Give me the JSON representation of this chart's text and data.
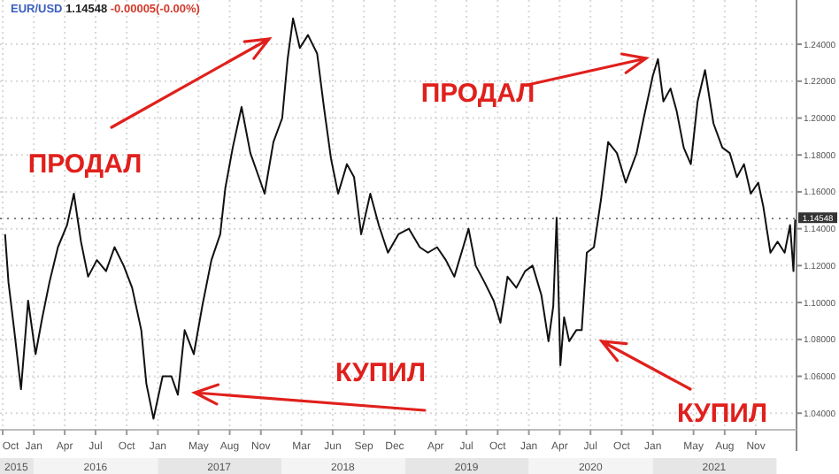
{
  "chart_data": {
    "type": "line",
    "title": "EUR/USD 1.14548 -0.00005(-0.00%)",
    "grid": true,
    "xlim": [
      "2015-09-23",
      "2022-03-01"
    ],
    "ylim": [
      1.031,
      1.264
    ],
    "yticks": [
      {
        "value": 1.04,
        "label": "1.04000"
      },
      {
        "value": 1.06,
        "label": "1.06000"
      },
      {
        "value": 1.08,
        "label": "1.08000"
      },
      {
        "value": 1.1,
        "label": "1.10000"
      },
      {
        "value": 1.12,
        "label": "1.12000"
      },
      {
        "value": 1.14,
        "label": "1.14000"
      },
      {
        "value": 1.16,
        "label": "1.16000"
      },
      {
        "value": 1.18,
        "label": "1.18000"
      },
      {
        "value": 1.2,
        "label": "1.20000"
      },
      {
        "value": 1.22,
        "label": "1.22000"
      },
      {
        "value": 1.24,
        "label": "1.24000"
      }
    ],
    "xticks": [
      {
        "value": "2015-10-01",
        "label": "Oct"
      },
      {
        "value": "2016-01-01",
        "label": "Jan"
      },
      {
        "value": "2016-04-01",
        "label": "Apr"
      },
      {
        "value": "2016-07-01",
        "label": "Jul"
      },
      {
        "value": "2016-10-01",
        "label": "Oct"
      },
      {
        "value": "2017-01-01",
        "label": "Jan"
      },
      {
        "value": "2017-05-01",
        "label": "May"
      },
      {
        "value": "2017-08-01",
        "label": "Aug"
      },
      {
        "value": "2017-11-01",
        "label": "Nov"
      },
      {
        "value": "2018-03-01",
        "label": "Mar"
      },
      {
        "value": "2018-06-01",
        "label": "Jun"
      },
      {
        "value": "2018-09-01",
        "label": "Sep"
      },
      {
        "value": "2018-12-01",
        "label": "Dec"
      },
      {
        "value": "2019-04-01",
        "label": "Apr"
      },
      {
        "value": "2019-07-01",
        "label": "Jul"
      },
      {
        "value": "2019-10-01",
        "label": "Oct"
      },
      {
        "value": "2020-01-01",
        "label": "Jan"
      },
      {
        "value": "2020-04-01",
        "label": "Apr"
      },
      {
        "value": "2020-07-01",
        "label": "Jul"
      },
      {
        "value": "2020-10-01",
        "label": "Oct"
      },
      {
        "value": "2021-01-01",
        "label": "Jan"
      },
      {
        "value": "2021-05-01",
        "label": "May"
      },
      {
        "value": "2021-08-01",
        "label": "Aug"
      },
      {
        "value": "2021-11-01",
        "label": "Nov"
      }
    ],
    "ref_lines": [
      {
        "axis": "y",
        "value": 1.14548,
        "label": "1.14548",
        "color": "#333333"
      }
    ],
    "annotations": [
      "ПРОДАЛ",
      "ПРОДАЛ",
      "КУПИЛ",
      "КУПИЛ"
    ],
    "x2lim": [
      "2015-09-23",
      "2022-03-01"
    ],
    "x2ticks": [
      {
        "value": "2015-11-10",
        "label": "2015"
      },
      {
        "value": "2016-07-01",
        "label": "2016"
      },
      {
        "value": "2017-07-01",
        "label": "2017"
      },
      {
        "value": "2018-07-01",
        "label": "2018"
      },
      {
        "value": "2019-07-01",
        "label": "2019"
      },
      {
        "value": "2020-07-01",
        "label": "2020"
      },
      {
        "value": "2021-07-01",
        "label": "2021"
      }
    ],
    "series": [
      {
        "color": "#111111",
        "x": [
          "2015-10-08",
          "2015-10-18",
          "2015-11-04",
          "2015-11-24",
          "2015-12-15",
          "2016-01-06",
          "2016-01-26",
          "2016-02-16",
          "2016-03-12",
          "2016-04-08",
          "2016-04-28",
          "2016-05-19",
          "2016-06-09",
          "2016-07-05",
          "2016-08-01",
          "2016-08-26",
          "2016-09-22",
          "2016-10-17",
          "2016-11-13",
          "2016-11-28",
          "2016-12-19",
          "2017-01-15",
          "2017-02-10",
          "2017-03-01",
          "2017-03-21",
          "2017-04-17",
          "2017-05-12",
          "2017-06-08",
          "2017-07-04",
          "2017-07-19",
          "2017-08-10",
          "2017-09-05",
          "2017-10-01",
          "2017-10-26",
          "2017-11-12",
          "2017-12-08",
          "2018-01-03",
          "2018-01-19",
          "2018-02-04",
          "2018-02-24",
          "2018-03-20",
          "2018-04-16",
          "2018-05-06",
          "2018-05-27",
          "2018-06-17",
          "2018-07-13",
          "2018-08-03",
          "2018-08-24",
          "2018-09-20",
          "2018-10-15",
          "2018-11-11",
          "2018-12-12",
          "2019-01-12",
          "2019-02-13",
          "2019-03-09",
          "2019-04-05",
          "2019-05-01",
          "2019-05-26",
          "2019-06-21",
          "2019-07-07",
          "2019-07-28",
          "2019-08-23",
          "2019-09-19",
          "2019-10-09",
          "2019-10-30",
          "2019-11-25",
          "2019-12-21",
          "2020-01-12",
          "2020-02-07",
          "2020-02-28",
          "2020-03-13",
          "2020-03-23",
          "2020-04-03",
          "2020-04-14",
          "2020-04-29",
          "2020-05-20",
          "2020-06-05",
          "2020-06-20",
          "2020-07-11",
          "2020-08-01",
          "2020-08-22",
          "2020-09-17",
          "2020-10-13",
          "2020-11-14",
          "2020-12-05",
          "2021-01-01",
          "2021-01-16",
          "2021-02-01",
          "2021-02-22",
          "2021-03-12",
          "2021-04-02",
          "2021-04-23",
          "2021-05-13",
          "2021-06-04",
          "2021-06-29",
          "2021-07-25",
          "2021-08-16",
          "2021-09-06",
          "2021-09-27",
          "2021-10-17",
          "2021-11-08",
          "2021-11-23",
          "2021-12-14",
          "2022-01-04",
          "2022-01-25",
          "2022-02-10",
          "2022-02-20",
          "2022-02-25"
        ],
        "values": [
          1.137,
          1.111,
          1.085,
          1.053,
          1.101,
          1.072,
          1.092,
          1.111,
          1.13,
          1.142,
          1.159,
          1.133,
          1.114,
          1.123,
          1.117,
          1.13,
          1.12,
          1.108,
          1.085,
          1.056,
          1.037,
          1.06,
          1.06,
          1.05,
          1.085,
          1.072,
          1.098,
          1.123,
          1.137,
          1.162,
          1.184,
          1.206,
          1.181,
          1.168,
          1.159,
          1.187,
          1.2,
          1.232,
          1.254,
          1.238,
          1.245,
          1.235,
          1.206,
          1.178,
          1.159,
          1.175,
          1.168,
          1.137,
          1.159,
          1.142,
          1.127,
          1.137,
          1.14,
          1.13,
          1.127,
          1.13,
          1.123,
          1.114,
          1.13,
          1.14,
          1.12,
          1.111,
          1.101,
          1.089,
          1.114,
          1.108,
          1.117,
          1.12,
          1.104,
          1.079,
          1.098,
          1.146,
          1.066,
          1.092,
          1.079,
          1.085,
          1.085,
          1.127,
          1.13,
          1.156,
          1.187,
          1.181,
          1.165,
          1.181,
          1.2,
          1.223,
          1.232,
          1.209,
          1.216,
          1.204,
          1.184,
          1.175,
          1.209,
          1.226,
          1.197,
          1.184,
          1.181,
          1.168,
          1.175,
          1.159,
          1.165,
          1.152,
          1.127,
          1.133,
          1.127,
          1.142,
          1.117,
          1.145
        ]
      }
    ]
  }
}
